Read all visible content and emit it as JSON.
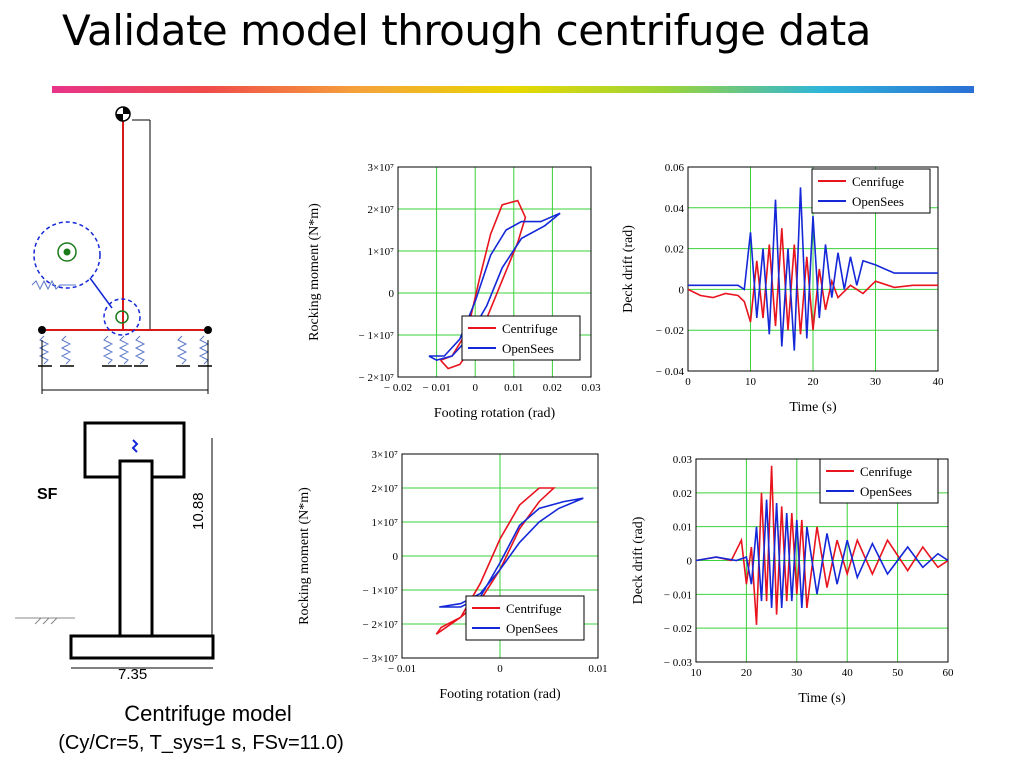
{
  "slide": {
    "title": "Validate model through centrifuge data",
    "caption_line1": "Centrifuge model",
    "caption_line2": "(Cy/Cr=5, T_sys=1 s, FSv=11.0)"
  },
  "model_diagram": {
    "sf_label": "SF",
    "height_label": "10.88",
    "width_label": "7.35"
  },
  "colors": {
    "red": "#e8141e",
    "blue": "#1428d8",
    "grid": "#39d239",
    "frame_red": "#d7191c",
    "spring_blue": "#5b78c8"
  },
  "chart_data": [
    {
      "id": "hysteresis-top",
      "type": "line",
      "xlabel": "Footing rotation (rad)",
      "ylabel": "Rocking moment (N*m)",
      "xlim": [
        -0.02,
        0.03
      ],
      "ylim": [
        -20000000,
        30000000
      ],
      "xticks": [
        "− 0.02",
        "− 0.01",
        "0",
        "0.01",
        "0.02",
        "0.03"
      ],
      "yticks": [
        "− 2×10⁷",
        "− 1×10⁷",
        "0",
        "1×10⁷",
        "2×10⁷",
        "3×10⁷"
      ],
      "grid": true,
      "legend_position": "bottom-right",
      "series": [
        {
          "name": "Centrifuge",
          "color": "red",
          "x": [
            -0.009,
            -0.006,
            -0.002,
            0.001,
            0.004,
            0.007,
            0.011,
            0.013,
            0.011,
            0.007,
            0.003,
            -0.001,
            -0.004,
            -0.007,
            -0.009
          ],
          "y": [
            -16000000,
            -15000000,
            -9000000,
            3000000,
            14000000,
            21000000,
            22000000,
            18000000,
            12000000,
            3000000,
            -6000000,
            -13000000,
            -17000000,
            -18000000,
            -16000000
          ]
        },
        {
          "name": "OpenSees",
          "color": "blue",
          "x": [
            -0.012,
            -0.008,
            -0.004,
            0.0,
            0.004,
            0.008,
            0.012,
            0.017,
            0.022,
            0.018,
            0.012,
            0.007,
            0.003,
            -0.002,
            -0.006,
            -0.01,
            -0.012
          ],
          "y": [
            -15000000,
            -15000000,
            -11000000,
            -2000000,
            9000000,
            15000000,
            17000000,
            17000000,
            19000000,
            16000000,
            13000000,
            6000000,
            -3000000,
            -11000000,
            -15000000,
            -16000000,
            -15000000
          ]
        }
      ]
    },
    {
      "id": "drift-top",
      "type": "line",
      "xlabel": "Time (s)",
      "ylabel": "Deck drift (rad)",
      "xlim": [
        0,
        40
      ],
      "ylim": [
        -0.04,
        0.06
      ],
      "xticks": [
        "0",
        "10",
        "20",
        "30",
        "40"
      ],
      "yticks": [
        "− 0.04",
        "− 0.02",
        "0",
        "0.02",
        "0.04",
        "0.06"
      ],
      "grid": true,
      "legend_position": "top-right",
      "series": [
        {
          "name": "Cenrifuge",
          "color": "red",
          "x": [
            0,
            2,
            4,
            6,
            8,
            9,
            10,
            11,
            12,
            13,
            14,
            15,
            16,
            17,
            18,
            19,
            20,
            21,
            22,
            23,
            24,
            26,
            28,
            30,
            33,
            36,
            40
          ],
          "y": [
            0.0,
            -0.003,
            -0.004,
            -0.002,
            -0.003,
            -0.006,
            -0.016,
            0.014,
            -0.014,
            0.022,
            -0.018,
            0.03,
            -0.02,
            0.022,
            -0.022,
            0.016,
            -0.02,
            0.01,
            -0.01,
            0.004,
            -0.004,
            0.002,
            -0.002,
            0.004,
            0.001,
            0.002,
            0.002
          ]
        },
        {
          "name": "OpenSees",
          "color": "blue",
          "x": [
            0,
            4,
            8,
            9,
            10,
            11,
            12,
            13,
            14,
            15,
            16,
            17,
            18,
            19,
            20,
            21,
            22,
            23,
            24,
            25,
            26,
            27,
            28,
            30,
            33,
            36,
            40
          ],
          "y": [
            0.002,
            0.002,
            0.002,
            0.0,
            0.028,
            -0.014,
            0.02,
            -0.022,
            0.044,
            -0.028,
            0.02,
            -0.03,
            0.05,
            -0.024,
            0.036,
            -0.014,
            0.022,
            -0.004,
            0.018,
            0.0,
            0.016,
            0.002,
            0.014,
            0.012,
            0.008,
            0.008,
            0.008
          ]
        }
      ]
    },
    {
      "id": "hysteresis-bottom",
      "type": "line",
      "xlabel": "Footing rotation (rad)",
      "ylabel": "Rocking moment (N*m)",
      "xlim": [
        -0.01,
        0.01
      ],
      "ylim": [
        -30000000,
        30000000
      ],
      "xticks": [
        "− 0.01",
        "0",
        "0.01"
      ],
      "yticks": [
        "− 3×10⁷",
        "− 2×10⁷",
        "− 1×10⁷",
        "0",
        "1×10⁷",
        "2×10⁷",
        "3×10⁷"
      ],
      "grid": true,
      "legend_position": "bottom-right",
      "series": [
        {
          "name": "Centrifuge",
          "color": "red",
          "x": [
            -0.0065,
            -0.004,
            -0.002,
            0.0,
            0.002,
            0.004,
            0.0055,
            0.004,
            0.002,
            0.0,
            -0.002,
            -0.004,
            -0.006,
            -0.0065
          ],
          "y": [
            -23000000,
            -18000000,
            -8000000,
            5000000,
            15000000,
            20000000,
            20000000,
            16000000,
            8000000,
            -4000000,
            -13000000,
            -18000000,
            -21000000,
            -23000000
          ]
        },
        {
          "name": "OpenSees",
          "color": "blue",
          "x": [
            -0.0062,
            -0.004,
            -0.002,
            0.0,
            0.002,
            0.004,
            0.0065,
            0.0085,
            0.006,
            0.004,
            0.002,
            0.0,
            -0.002,
            -0.004,
            -0.0062
          ],
          "y": [
            -15000000,
            -15000000,
            -12000000,
            -2000000,
            9000000,
            14000000,
            16000000,
            17000000,
            14000000,
            10000000,
            4000000,
            -4000000,
            -11000000,
            -14000000,
            -15000000
          ]
        }
      ]
    },
    {
      "id": "drift-bottom",
      "type": "line",
      "xlabel": "Time (s)",
      "ylabel": "Deck drift (rad)",
      "xlim": [
        10,
        60
      ],
      "ylim": [
        -0.03,
        0.03
      ],
      "xticks": [
        "10",
        "20",
        "30",
        "40",
        "50",
        "60"
      ],
      "yticks": [
        "− 0.03",
        "− 0.02",
        "− 0.01",
        "0",
        "0.01",
        "0.02",
        "0.03"
      ],
      "grid": true,
      "legend_position": "top-right",
      "series": [
        {
          "name": "Cenrifuge",
          "color": "red",
          "x": [
            10,
            14,
            17,
            19,
            20,
            21,
            22,
            23,
            24,
            25,
            26,
            27,
            28,
            29,
            30,
            31,
            32,
            34,
            36,
            38,
            40,
            42,
            45,
            48,
            52,
            55,
            58,
            60
          ],
          "y": [
            0.0,
            0.001,
            0.0,
            0.006,
            -0.007,
            0.004,
            -0.019,
            0.02,
            -0.012,
            0.028,
            -0.016,
            0.016,
            -0.012,
            0.014,
            -0.01,
            0.012,
            -0.014,
            0.01,
            -0.008,
            0.006,
            -0.004,
            0.006,
            -0.004,
            0.006,
            -0.003,
            0.004,
            -0.002,
            0.0
          ]
        },
        {
          "name": "OpenSees",
          "color": "blue",
          "x": [
            10,
            14,
            18,
            20,
            21,
            22,
            23,
            24,
            25,
            26,
            27,
            28,
            29,
            30,
            31,
            32,
            34,
            36,
            38,
            40,
            42,
            45,
            48,
            52,
            55,
            58,
            60
          ],
          "y": [
            0.0,
            0.001,
            0.0,
            0.001,
            -0.007,
            0.01,
            -0.012,
            0.018,
            -0.014,
            0.017,
            -0.014,
            0.014,
            -0.012,
            0.012,
            -0.014,
            0.01,
            -0.01,
            0.008,
            -0.007,
            0.006,
            -0.005,
            0.005,
            -0.004,
            0.004,
            -0.002,
            0.002,
            0.0
          ]
        }
      ]
    }
  ]
}
